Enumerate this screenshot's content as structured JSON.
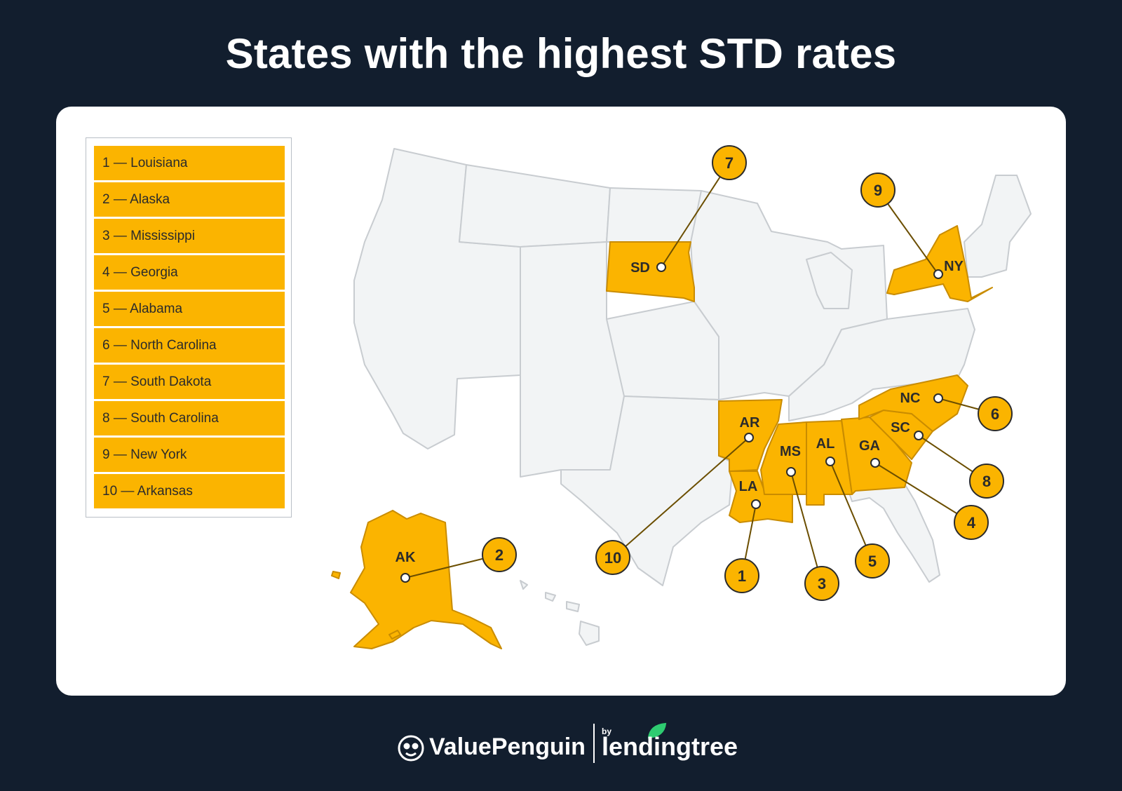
{
  "title": "States with the highest STD rates",
  "legend": [
    {
      "rank": "1",
      "state": "Louisiana",
      "label": "1 — Louisiana"
    },
    {
      "rank": "2",
      "state": "Alaska",
      "label": "2 — Alaska"
    },
    {
      "rank": "3",
      "state": "Mississippi",
      "label": "3 — Mississippi"
    },
    {
      "rank": "4",
      "state": "Georgia",
      "label": "4 — Georgia"
    },
    {
      "rank": "5",
      "state": "Alabama",
      "label": "5 — Alabama"
    },
    {
      "rank": "6",
      "state": "North Carolina",
      "label": "6 — North Carolina"
    },
    {
      "rank": "7",
      "state": "South Dakota",
      "label": "7 — South Dakota"
    },
    {
      "rank": "8",
      "state": "South Carolina",
      "label": "8 — South Carolina"
    },
    {
      "rank": "9",
      "state": "New York",
      "label": "9 — New York"
    },
    {
      "rank": "10",
      "state": "Arkansas",
      "label": "10 — Arkansas"
    }
  ],
  "states": [
    {
      "abbr": "LA",
      "rank": "1"
    },
    {
      "abbr": "AK",
      "rank": "2"
    },
    {
      "abbr": "MS",
      "rank": "3"
    },
    {
      "abbr": "GA",
      "rank": "4"
    },
    {
      "abbr": "AL",
      "rank": "5"
    },
    {
      "abbr": "NC",
      "rank": "6"
    },
    {
      "abbr": "SD",
      "rank": "7"
    },
    {
      "abbr": "SC",
      "rank": "8"
    },
    {
      "abbr": "NY",
      "rank": "9"
    },
    {
      "abbr": "AR",
      "rank": "10"
    }
  ],
  "colors": {
    "background": "#121e2e",
    "highlight": "#fbb400",
    "highlight_stroke": "#c98c00",
    "base_state": "#f2f4f5",
    "base_stroke": "#c8ccd0",
    "leader_line": "#6b4e00",
    "text_dark": "#2b2b2b"
  },
  "footer": {
    "brand_primary": "ValuePenguin",
    "by": "by",
    "brand_secondary": "lendingtree"
  }
}
